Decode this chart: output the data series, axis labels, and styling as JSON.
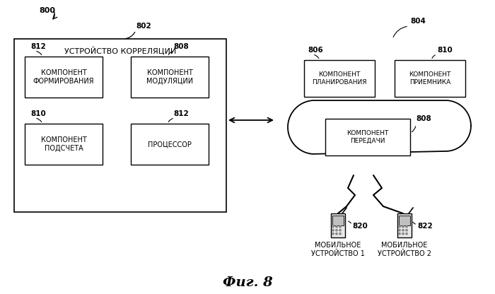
{
  "bg_color": "#ffffff",
  "label_800": "800",
  "label_802": "802",
  "label_804": "804",
  "label_806": "806",
  "label_808_cloud": "808",
  "label_810_cloud": "810",
  "label_808_box": "808",
  "label_810_box": "810",
  "label_812_top": "812",
  "label_812_bot": "812",
  "label_820": "820",
  "label_822": "822",
  "box_title": "УСТРОЙСТВО КОРРЕЛЯЦИИ",
  "box1_text": "КОМПОНЕНТ\nФОРМИРОВАНИЯ",
  "box2_text": "КОМПОНЕНТ\nМОДУЛЯЦИИ",
  "box3_text": "КОМПОНЕНТ\nПОДСЧЕТА",
  "box4_text": "ПРОЦЕССОР",
  "cloud_box1_text": "КОМПОНЕНТ\nПЛАНИРОВАНИЯ",
  "cloud_box2_text": "КОМПОНЕНТ\nПРИЕМНИКА",
  "cloud_box3_text": "КОМПОНЕНТ\nПЕРЕДАЧИ",
  "mobile1_text": "МОБИЛЬНОЕ\nУСТРОЙСТВО 1",
  "mobile2_text": "МОБИЛЬНОЕ\nУСТРОЙСТВО 2",
  "title": "Фиг. 8"
}
